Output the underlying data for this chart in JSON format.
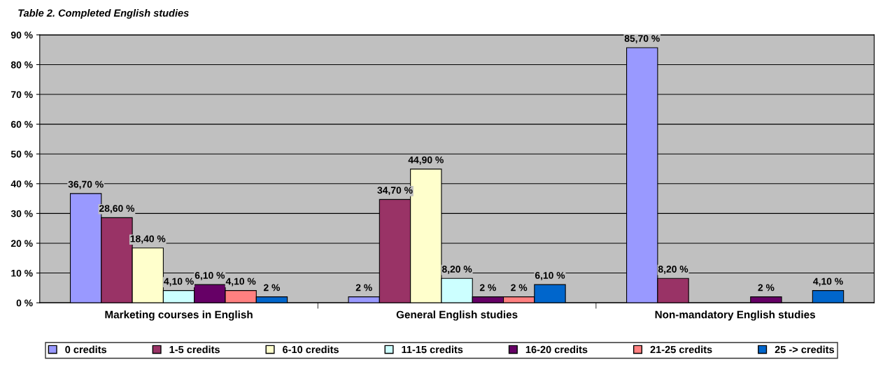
{
  "chart_data": {
    "type": "bar",
    "title": "Table 2. Completed English studies",
    "categories": [
      "Marketing courses in English",
      "General English studies",
      "Non-mandatory English studies"
    ],
    "series": [
      {
        "name": "0 credits",
        "color": "#9999ff",
        "values": [
          36.7,
          2,
          85.7
        ],
        "value_labels": [
          "36,70 %",
          "2 %",
          "85,70 %"
        ]
      },
      {
        "name": "1-5 credits",
        "color": "#993366",
        "values": [
          28.6,
          34.7,
          8.2
        ],
        "value_labels": [
          "28,60 %",
          "34,70 %",
          "8,20 %"
        ]
      },
      {
        "name": "6-10 credits",
        "color": "#ffffcc",
        "values": [
          18.4,
          44.9,
          null
        ],
        "value_labels": [
          "18,40 %",
          "44,90 %",
          null
        ]
      },
      {
        "name": "11-15 credits",
        "color": "#ccffff",
        "values": [
          4.1,
          8.2,
          null
        ],
        "value_labels": [
          "4,10 %",
          "8,20 %",
          null
        ]
      },
      {
        "name": "16-20 credits",
        "color": "#660066",
        "values": [
          6.1,
          2,
          2
        ],
        "value_labels": [
          "6,10 %",
          "2 %",
          "2 %"
        ]
      },
      {
        "name": "21-25 credits",
        "color": "#ff8080",
        "values": [
          4.1,
          2,
          null
        ],
        "value_labels": [
          "4,10 %",
          "2 %",
          null
        ]
      },
      {
        "name": "25 -> credits",
        "color": "#0066cc",
        "values": [
          2,
          6.1,
          4.1
        ],
        "value_labels": [
          "2 %",
          "6,10 %",
          "4,10 %"
        ]
      }
    ],
    "ylim": [
      0,
      90
    ],
    "yticks": [
      {
        "value": 0,
        "label": "0 %"
      },
      {
        "value": 10,
        "label": "10 %"
      },
      {
        "value": 20,
        "label": "20 %"
      },
      {
        "value": 30,
        "label": "30 %"
      },
      {
        "value": 40,
        "label": "40 %"
      },
      {
        "value": 50,
        "label": "50 %"
      },
      {
        "value": 60,
        "label": "60 %"
      },
      {
        "value": 70,
        "label": "70 %"
      },
      {
        "value": 80,
        "label": "80 %"
      },
      {
        "value": 90,
        "label": "90 %"
      }
    ],
    "grid": "y",
    "legend": "bottom"
  }
}
